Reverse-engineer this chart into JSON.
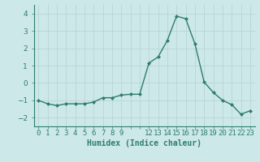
{
  "x": [
    0,
    1,
    2,
    3,
    4,
    5,
    6,
    7,
    8,
    9,
    10,
    11,
    12,
    13,
    14,
    15,
    16,
    17,
    18,
    19,
    20,
    21,
    22,
    23
  ],
  "y": [
    -1.0,
    -1.2,
    -1.3,
    -1.2,
    -1.2,
    -1.2,
    -1.1,
    -0.85,
    -0.85,
    -0.7,
    -0.65,
    -0.65,
    1.15,
    1.5,
    2.45,
    3.85,
    3.7,
    2.25,
    0.05,
    -0.55,
    -1.0,
    -1.25,
    -1.8,
    -1.6
  ],
  "line_color": "#2e7d6e",
  "marker": "D",
  "markersize": 2.0,
  "linewidth": 1.0,
  "xlabel": "Humidex (Indice chaleur)",
  "xlim": [
    -0.5,
    23.5
  ],
  "ylim": [
    -2.5,
    4.5
  ],
  "yticks": [
    -2,
    -1,
    0,
    1,
    2,
    3,
    4
  ],
  "bg_color": "#cce8e8",
  "grid_color": "#b8d4d4",
  "tick_color": "#2e7d6e",
  "label_color": "#2e7d6e",
  "xlabel_fontsize": 7.0,
  "tick_fontsize": 6.5
}
